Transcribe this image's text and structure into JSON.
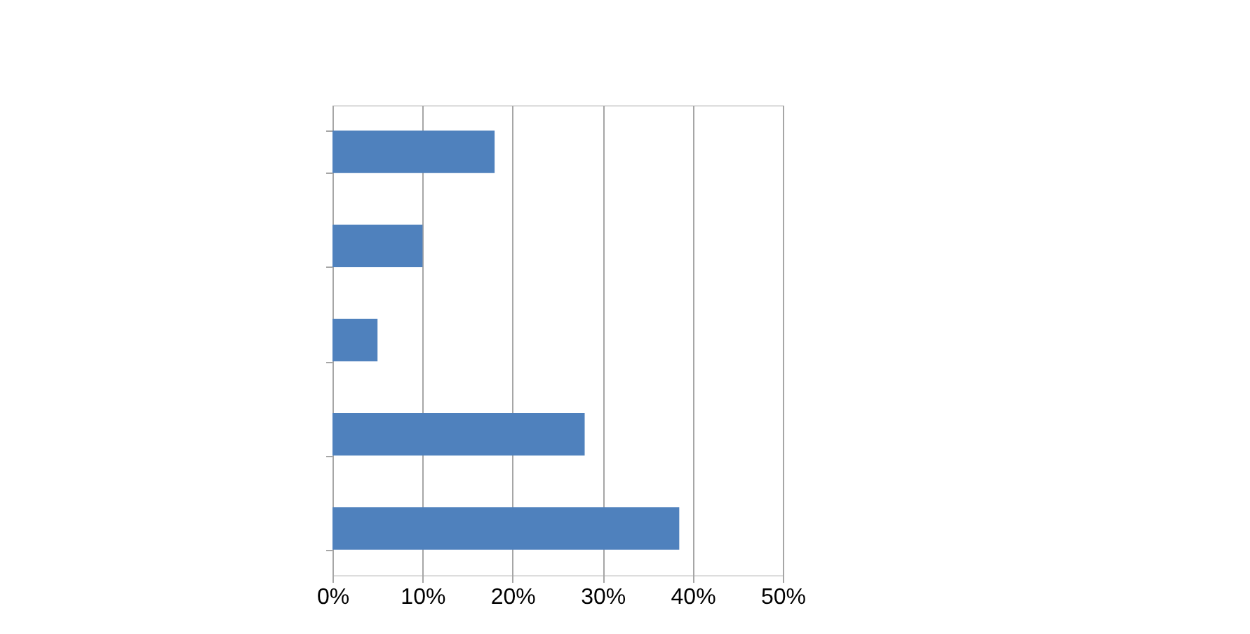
{
  "chart_data": {
    "type": "bar",
    "orientation": "horizontal",
    "categories": [
      null,
      null,
      null,
      null,
      null
    ],
    "series": [
      {
        "color": "#4f81bd",
        "values": [
          18,
          10,
          5,
          28,
          38.5
        ]
      }
    ],
    "xlim": [
      0,
      50
    ],
    "xticks": [
      {
        "value": 0,
        "label": "0%"
      },
      {
        "value": 10,
        "label": "10%"
      },
      {
        "value": 20,
        "label": "20%"
      },
      {
        "value": 30,
        "label": "30%"
      },
      {
        "value": 40,
        "label": "40%"
      },
      {
        "value": 50,
        "label": "50%"
      }
    ],
    "grid": "x",
    "legend": false
  }
}
